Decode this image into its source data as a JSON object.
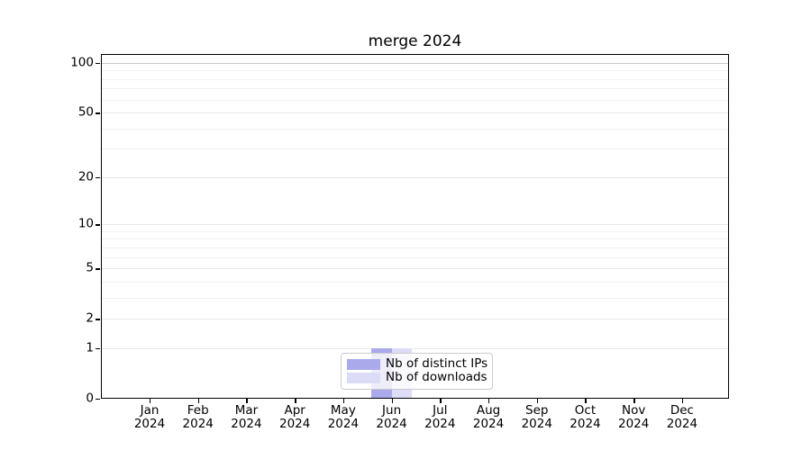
{
  "title": "merge 2024",
  "chart_data": {
    "type": "bar",
    "title": "merge 2024",
    "categories": [
      {
        "month": "Jan",
        "year": "2024"
      },
      {
        "month": "Feb",
        "year": "2024"
      },
      {
        "month": "Mar",
        "year": "2024"
      },
      {
        "month": "Apr",
        "year": "2024"
      },
      {
        "month": "May",
        "year": "2024"
      },
      {
        "month": "Jun",
        "year": "2024"
      },
      {
        "month": "Jul",
        "year": "2024"
      },
      {
        "month": "Aug",
        "year": "2024"
      },
      {
        "month": "Sep",
        "year": "2024"
      },
      {
        "month": "Oct",
        "year": "2024"
      },
      {
        "month": "Nov",
        "year": "2024"
      },
      {
        "month": "Dec",
        "year": "2024"
      }
    ],
    "series": [
      {
        "name": "Nb of distinct IPs",
        "color": "#a9a9ec",
        "values": [
          0,
          0,
          0,
          0,
          0,
          1,
          0,
          0,
          0,
          0,
          0,
          0
        ]
      },
      {
        "name": "Nb of downloads",
        "color": "#dcdcf6",
        "values": [
          0,
          0,
          0,
          0,
          0,
          1,
          0,
          0,
          0,
          0,
          0,
          0
        ]
      }
    ],
    "xlabel": "",
    "ylabel": "",
    "yscale": "log1p",
    "ylim": [
      0,
      113
    ],
    "yticks_major": [
      0,
      1,
      2,
      5,
      10,
      20,
      50,
      100
    ],
    "yticks_minor": [
      3,
      4,
      6,
      7,
      8,
      9,
      30,
      40,
      60,
      70,
      80,
      90
    ],
    "grid": "horizontal",
    "legend_position": "lower center"
  },
  "colors": {
    "background": "#ffffff",
    "spine": "#000000",
    "grid_major": "#e8e8e8",
    "grid_minor": "#f1f1f1",
    "grid_top": "#c9c9c9",
    "bar_distinct_ips": "#a9a9ec",
    "bar_downloads": "#dcdcf6",
    "legend_border": "#cccccc"
  }
}
